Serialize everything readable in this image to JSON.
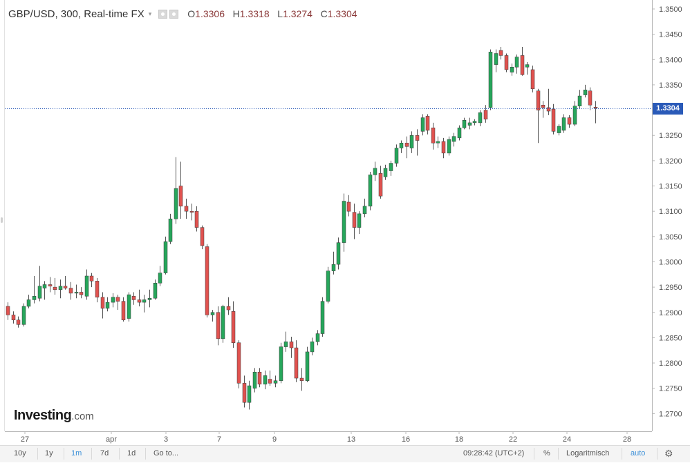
{
  "header": {
    "symbol": "GBP/USD, 300, Real-time FX",
    "caret": "▾",
    "open_label": "O",
    "open": "1.3306",
    "high_label": "H",
    "high": "1.3318",
    "low_label": "L",
    "low": "1.3274",
    "close_label": "C",
    "close": "1.3304"
  },
  "logo": {
    "brand": "Investing",
    "suffix": ".com"
  },
  "current_price_label": "1.3304",
  "toolbar": {
    "ranges": [
      "10y",
      "1y",
      "1m",
      "7d",
      "1d"
    ],
    "active_range": "1m",
    "goto": "Go to...",
    "time": "09:28:42 (UTC+2)",
    "percent": "%",
    "log": "Logaritmisch",
    "auto": "auto"
  },
  "colors": {
    "up": "#26a65b",
    "down": "#e0524f",
    "wick": "#555555",
    "grid_border": "#b8b8b8",
    "price_line": "#2a5ab8",
    "price_label_bg": "#2a5ab8",
    "accent": "#3a8fd8"
  },
  "chart_data": {
    "type": "candlestick",
    "title": "GBP/USD, 300, Real-time FX",
    "y_range": [
      1.2665,
      1.3515
    ],
    "y_ticks": [
      "1.3500",
      "1.3450",
      "1.3400",
      "1.3350",
      "1.3300",
      "1.3250",
      "1.3200",
      "1.3150",
      "1.3100",
      "1.3050",
      "1.3000",
      "1.2950",
      "1.2900",
      "1.2850",
      "1.2800",
      "1.2750",
      "1.2700"
    ],
    "current_price": 1.3304,
    "x_ticks": [
      "27",
      "apr",
      "3",
      "7",
      "9",
      "13",
      "16",
      "18",
      "22",
      "24",
      "28"
    ],
    "grid": false,
    "candles": [
      {
        "o": 1.2912,
        "h": 1.292,
        "l": 1.2885,
        "c": 1.2895
      },
      {
        "o": 1.2895,
        "h": 1.2902,
        "l": 1.2878,
        "c": 1.2885
      },
      {
        "o": 1.2885,
        "h": 1.2892,
        "l": 1.287,
        "c": 1.2876
      },
      {
        "o": 1.2876,
        "h": 1.2918,
        "l": 1.2872,
        "c": 1.2912
      },
      {
        "o": 1.2912,
        "h": 1.2935,
        "l": 1.2908,
        "c": 1.2925
      },
      {
        "o": 1.2925,
        "h": 1.2972,
        "l": 1.2918,
        "c": 1.2932
      },
      {
        "o": 1.2928,
        "h": 1.2992,
        "l": 1.2922,
        "c": 1.2952
      },
      {
        "o": 1.2948,
        "h": 1.2962,
        "l": 1.2925,
        "c": 1.2955
      },
      {
        "o": 1.2955,
        "h": 1.297,
        "l": 1.294,
        "c": 1.2952
      },
      {
        "o": 1.295,
        "h": 1.2968,
        "l": 1.2935,
        "c": 1.2945
      },
      {
        "o": 1.2945,
        "h": 1.2965,
        "l": 1.2928,
        "c": 1.2952
      },
      {
        "o": 1.2952,
        "h": 1.2972,
        "l": 1.2945,
        "c": 1.2948
      },
      {
        "o": 1.2948,
        "h": 1.296,
        "l": 1.2925,
        "c": 1.2938
      },
      {
        "o": 1.2938,
        "h": 1.2955,
        "l": 1.2928,
        "c": 1.294
      },
      {
        "o": 1.294,
        "h": 1.295,
        "l": 1.2928,
        "c": 1.2935
      },
      {
        "o": 1.2932,
        "h": 1.2985,
        "l": 1.2925,
        "c": 1.2972
      },
      {
        "o": 1.2972,
        "h": 1.2978,
        "l": 1.295,
        "c": 1.2962
      },
      {
        "o": 1.2962,
        "h": 1.2968,
        "l": 1.292,
        "c": 1.293
      },
      {
        "o": 1.293,
        "h": 1.294,
        "l": 1.2888,
        "c": 1.2908
      },
      {
        "o": 1.2908,
        "h": 1.293,
        "l": 1.2902,
        "c": 1.292
      },
      {
        "o": 1.292,
        "h": 1.2938,
        "l": 1.291,
        "c": 1.293
      },
      {
        "o": 1.293,
        "h": 1.2935,
        "l": 1.2905,
        "c": 1.2922
      },
      {
        "o": 1.2922,
        "h": 1.293,
        "l": 1.2882,
        "c": 1.2885
      },
      {
        "o": 1.2888,
        "h": 1.294,
        "l": 1.2882,
        "c": 1.2935
      },
      {
        "o": 1.2932,
        "h": 1.294,
        "l": 1.2915,
        "c": 1.2925
      },
      {
        "o": 1.2925,
        "h": 1.2945,
        "l": 1.2912,
        "c": 1.292
      },
      {
        "o": 1.292,
        "h": 1.2935,
        "l": 1.29,
        "c": 1.2925
      },
      {
        "o": 1.2925,
        "h": 1.2945,
        "l": 1.291,
        "c": 1.2928
      },
      {
        "o": 1.2928,
        "h": 1.2965,
        "l": 1.2925,
        "c": 1.2958
      },
      {
        "o": 1.2958,
        "h": 1.2992,
        "l": 1.2952,
        "c": 1.2978
      },
      {
        "o": 1.2978,
        "h": 1.305,
        "l": 1.2975,
        "c": 1.304
      },
      {
        "o": 1.304,
        "h": 1.3095,
        "l": 1.3035,
        "c": 1.3085
      },
      {
        "o": 1.3085,
        "h": 1.3207,
        "l": 1.3075,
        "c": 1.3145
      },
      {
        "o": 1.315,
        "h": 1.3198,
        "l": 1.3085,
        "c": 1.311
      },
      {
        "o": 1.311,
        "h": 1.3125,
        "l": 1.3085,
        "c": 1.31
      },
      {
        "o": 1.31,
        "h": 1.3115,
        "l": 1.3082,
        "c": 1.3098
      },
      {
        "o": 1.31,
        "h": 1.311,
        "l": 1.306,
        "c": 1.3068
      },
      {
        "o": 1.3068,
        "h": 1.3072,
        "l": 1.3025,
        "c": 1.3032
      },
      {
        "o": 1.303,
        "h": 1.3035,
        "l": 1.289,
        "c": 1.2895
      },
      {
        "o": 1.2895,
        "h": 1.2905,
        "l": 1.2882,
        "c": 1.29
      },
      {
        "o": 1.29,
        "h": 1.2912,
        "l": 1.2835,
        "c": 1.2848
      },
      {
        "o": 1.2848,
        "h": 1.2915,
        "l": 1.284,
        "c": 1.2912
      },
      {
        "o": 1.2912,
        "h": 1.293,
        "l": 1.2895,
        "c": 1.2905
      },
      {
        "o": 1.2902,
        "h": 1.2922,
        "l": 1.283,
        "c": 1.284
      },
      {
        "o": 1.284,
        "h": 1.2845,
        "l": 1.275,
        "c": 1.276
      },
      {
        "o": 1.276,
        "h": 1.2775,
        "l": 1.2712,
        "c": 1.2722
      },
      {
        "o": 1.2722,
        "h": 1.2765,
        "l": 1.2708,
        "c": 1.2755
      },
      {
        "o": 1.275,
        "h": 1.279,
        "l": 1.2742,
        "c": 1.2782
      },
      {
        "o": 1.2782,
        "h": 1.279,
        "l": 1.2752,
        "c": 1.2758
      },
      {
        "o": 1.2758,
        "h": 1.2785,
        "l": 1.2748,
        "c": 1.2775
      },
      {
        "o": 1.2768,
        "h": 1.2785,
        "l": 1.2755,
        "c": 1.276
      },
      {
        "o": 1.276,
        "h": 1.2775,
        "l": 1.2752,
        "c": 1.2765
      },
      {
        "o": 1.2765,
        "h": 1.284,
        "l": 1.276,
        "c": 1.2832
      },
      {
        "o": 1.2832,
        "h": 1.2862,
        "l": 1.2822,
        "c": 1.2842
      },
      {
        "o": 1.2842,
        "h": 1.2852,
        "l": 1.281,
        "c": 1.283
      },
      {
        "o": 1.283,
        "h": 1.2845,
        "l": 1.2762,
        "c": 1.277
      },
      {
        "o": 1.277,
        "h": 1.279,
        "l": 1.2745,
        "c": 1.2765
      },
      {
        "o": 1.2765,
        "h": 1.2832,
        "l": 1.2762,
        "c": 1.2822
      },
      {
        "o": 1.2822,
        "h": 1.285,
        "l": 1.2815,
        "c": 1.2842
      },
      {
        "o": 1.2842,
        "h": 1.2865,
        "l": 1.2835,
        "c": 1.2858
      },
      {
        "o": 1.2858,
        "h": 1.293,
        "l": 1.2852,
        "c": 1.2922
      },
      {
        "o": 1.2922,
        "h": 1.299,
        "l": 1.2918,
        "c": 1.2982
      },
      {
        "o": 1.2982,
        "h": 1.302,
        "l": 1.2975,
        "c": 1.2995
      },
      {
        "o": 1.2995,
        "h": 1.3048,
        "l": 1.2985,
        "c": 1.3038
      },
      {
        "o": 1.3038,
        "h": 1.3135,
        "l": 1.302,
        "c": 1.312
      },
      {
        "o": 1.3118,
        "h": 1.3132,
        "l": 1.309,
        "c": 1.31
      },
      {
        "o": 1.3098,
        "h": 1.3115,
        "l": 1.3045,
        "c": 1.3068
      },
      {
        "o": 1.3068,
        "h": 1.31,
        "l": 1.3055,
        "c": 1.3095
      },
      {
        "o": 1.3095,
        "h": 1.3125,
        "l": 1.3088,
        "c": 1.311
      },
      {
        "o": 1.311,
        "h": 1.3178,
        "l": 1.3102,
        "c": 1.3172
      },
      {
        "o": 1.3172,
        "h": 1.3198,
        "l": 1.316,
        "c": 1.3185
      },
      {
        "o": 1.3175,
        "h": 1.319,
        "l": 1.3125,
        "c": 1.313
      },
      {
        "o": 1.3168,
        "h": 1.3192,
        "l": 1.3162,
        "c": 1.3185
      },
      {
        "o": 1.318,
        "h": 1.32,
        "l": 1.317,
        "c": 1.3195
      },
      {
        "o": 1.3195,
        "h": 1.3232,
        "l": 1.3188,
        "c": 1.3225
      },
      {
        "o": 1.3225,
        "h": 1.324,
        "l": 1.3215,
        "c": 1.3235
      },
      {
        "o": 1.3235,
        "h": 1.3248,
        "l": 1.3205,
        "c": 1.3228
      },
      {
        "o": 1.3225,
        "h": 1.3258,
        "l": 1.3215,
        "c": 1.325
      },
      {
        "o": 1.325,
        "h": 1.3262,
        "l": 1.321,
        "c": 1.324
      },
      {
        "o": 1.3258,
        "h": 1.3292,
        "l": 1.325,
        "c": 1.3285
      },
      {
        "o": 1.3288,
        "h": 1.3292,
        "l": 1.3252,
        "c": 1.326
      },
      {
        "o": 1.3265,
        "h": 1.3275,
        "l": 1.3222,
        "c": 1.3235
      },
      {
        "o": 1.3235,
        "h": 1.3248,
        "l": 1.3225,
        "c": 1.3238
      },
      {
        "o": 1.3238,
        "h": 1.3245,
        "l": 1.3205,
        "c": 1.3215
      },
      {
        "o": 1.3215,
        "h": 1.3248,
        "l": 1.321,
        "c": 1.3242
      },
      {
        "o": 1.3238,
        "h": 1.3255,
        "l": 1.3228,
        "c": 1.3248
      },
      {
        "o": 1.3245,
        "h": 1.327,
        "l": 1.324,
        "c": 1.3265
      },
      {
        "o": 1.3265,
        "h": 1.3285,
        "l": 1.3262,
        "c": 1.328
      },
      {
        "o": 1.327,
        "h": 1.3285,
        "l": 1.3262,
        "c": 1.3275
      },
      {
        "o": 1.3275,
        "h": 1.3282,
        "l": 1.327,
        "c": 1.3278
      },
      {
        "o": 1.3275,
        "h": 1.33,
        "l": 1.3268,
        "c": 1.3295
      },
      {
        "o": 1.33,
        "h": 1.331,
        "l": 1.3275,
        "c": 1.3282
      },
      {
        "o": 1.3305,
        "h": 1.342,
        "l": 1.33,
        "c": 1.3415
      },
      {
        "o": 1.339,
        "h": 1.342,
        "l": 1.3375,
        "c": 1.3412
      },
      {
        "o": 1.3418,
        "h": 1.3425,
        "l": 1.34,
        "c": 1.3408
      },
      {
        "o": 1.3408,
        "h": 1.3412,
        "l": 1.3375,
        "c": 1.338
      },
      {
        "o": 1.3375,
        "h": 1.3392,
        "l": 1.3368,
        "c": 1.3385
      },
      {
        "o": 1.3385,
        "h": 1.341,
        "l": 1.3372,
        "c": 1.3405
      },
      {
        "o": 1.3408,
        "h": 1.3425,
        "l": 1.3368,
        "c": 1.337
      },
      {
        "o": 1.3385,
        "h": 1.3395,
        "l": 1.337,
        "c": 1.339
      },
      {
        "o": 1.338,
        "h": 1.3388,
        "l": 1.3335,
        "c": 1.3342
      },
      {
        "o": 1.3338,
        "h": 1.3342,
        "l": 1.3235,
        "c": 1.33
      },
      {
        "o": 1.331,
        "h": 1.3318,
        "l": 1.3285,
        "c": 1.3305
      },
      {
        "o": 1.3305,
        "h": 1.3342,
        "l": 1.329,
        "c": 1.3298
      },
      {
        "o": 1.3302,
        "h": 1.3312,
        "l": 1.3252,
        "c": 1.3258
      },
      {
        "o": 1.3255,
        "h": 1.3272,
        "l": 1.325,
        "c": 1.3268
      },
      {
        "o": 1.326,
        "h": 1.3292,
        "l": 1.3255,
        "c": 1.3285
      },
      {
        "o": 1.3285,
        "h": 1.329,
        "l": 1.3265,
        "c": 1.3272
      },
      {
        "o": 1.3272,
        "h": 1.3318,
        "l": 1.3268,
        "c": 1.3308
      },
      {
        "o": 1.3308,
        "h": 1.334,
        "l": 1.3302,
        "c": 1.3328
      },
      {
        "o": 1.333,
        "h": 1.335,
        "l": 1.3325,
        "c": 1.334
      },
      {
        "o": 1.3338,
        "h": 1.3345,
        "l": 1.33,
        "c": 1.331
      },
      {
        "o": 1.3306,
        "h": 1.3318,
        "l": 1.3274,
        "c": 1.3304
      }
    ]
  }
}
